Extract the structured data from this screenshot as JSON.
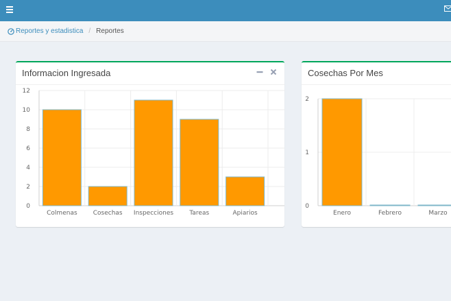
{
  "header": {
    "menu_icon": "hamburger-icon",
    "mail_icon": "envelope-icon",
    "color": "#3c8dbc"
  },
  "breadcrumb": {
    "icon": "dashboard-icon",
    "link_label": "Reportes y estadistica",
    "separator": "/",
    "current": "Reportes"
  },
  "panels": [
    {
      "title": "Informacion Ingresada",
      "tools": [
        "minus-icon",
        "close-icon"
      ]
    },
    {
      "title": "Cosechas Por Mes"
    }
  ],
  "colors": {
    "bar": "#ff9900",
    "bar_border": "#7fb7c9",
    "box_border": "#00a65a"
  },
  "chart_data": [
    {
      "type": "bar",
      "categories": [
        "Colmenas",
        "Cosechas",
        "Inspecciones",
        "Tareas",
        "Apiarios"
      ],
      "values": [
        10,
        2,
        11,
        9,
        3
      ],
      "yticks": [
        0,
        2,
        4,
        6,
        8,
        10,
        12
      ],
      "ylim": [
        0,
        12
      ],
      "grid": true,
      "legend": "none"
    },
    {
      "type": "bar",
      "categories": [
        "Enero",
        "Febrero",
        "Marzo"
      ],
      "values": [
        2,
        0,
        0
      ],
      "yticks": [
        0,
        1,
        2
      ],
      "ylim": [
        0,
        2
      ],
      "grid": true,
      "legend": "none"
    }
  ]
}
